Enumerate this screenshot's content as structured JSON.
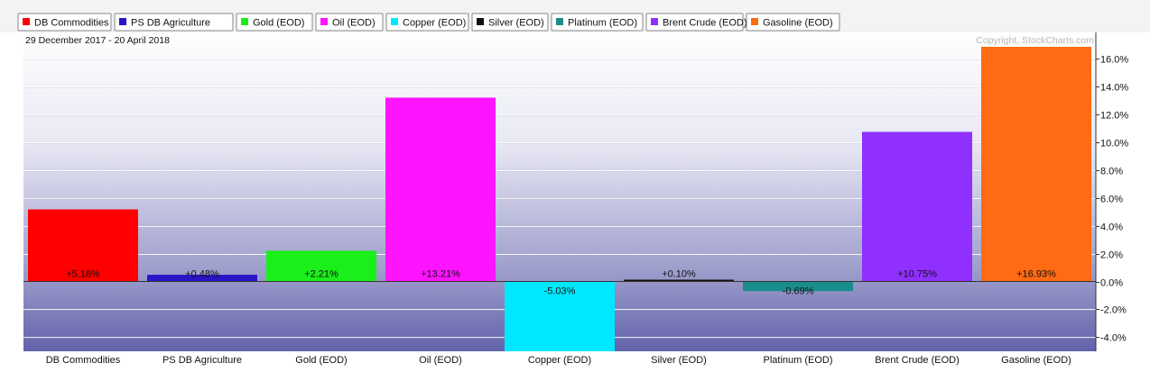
{
  "chart_data": {
    "type": "bar",
    "date_range": "29 December 2017 - 20 April 2018",
    "copyright": "Copyright, StockCharts.com",
    "categories": [
      "DB Commodities",
      "PS DB Agriculture",
      "Gold (EOD)",
      "Oil (EOD)",
      "Copper (EOD)",
      "Silver (EOD)",
      "Platinum (EOD)",
      "Brent Crude (EOD)",
      "Gasoline (EOD)"
    ],
    "values": [
      5.18,
      0.48,
      2.21,
      13.21,
      -5.03,
      0.1,
      -0.69,
      10.75,
      16.93
    ],
    "value_labels": [
      "+5.18%",
      "+0.48%",
      "+2.21%",
      "+13.21%",
      "-5.03%",
      "+0.10%",
      "-0.69%",
      "+10.75%",
      "+16.93%"
    ],
    "colors": [
      "#ff0000",
      "#2a14c8",
      "#1aef1a",
      "#ff14ff",
      "#00e8ff",
      "#111111",
      "#1a8c8c",
      "#9030ff",
      "#ff6a14"
    ],
    "legend": [
      "DB Commodities",
      "PS DB Agriculture",
      "Gold (EOD)",
      "Oil (EOD)",
      "Copper (EOD)",
      "Silver (EOD)",
      "Platinum (EOD)",
      "Brent Crude (EOD)",
      "Gasoline (EOD)"
    ],
    "yticks": [
      16,
      14,
      12,
      10,
      8,
      6,
      4,
      2,
      0,
      -2,
      -4
    ],
    "ytick_labels": [
      "16.0%",
      "14.0%",
      "12.0%",
      "10.0%",
      "8.0%",
      "6.0%",
      "4.0%",
      "2.0%",
      "0.0%",
      "-2.0%",
      "-4.0%"
    ],
    "ylim": [
      -5.03,
      16.93
    ],
    "grid": true,
    "legend_position": "top-left"
  }
}
